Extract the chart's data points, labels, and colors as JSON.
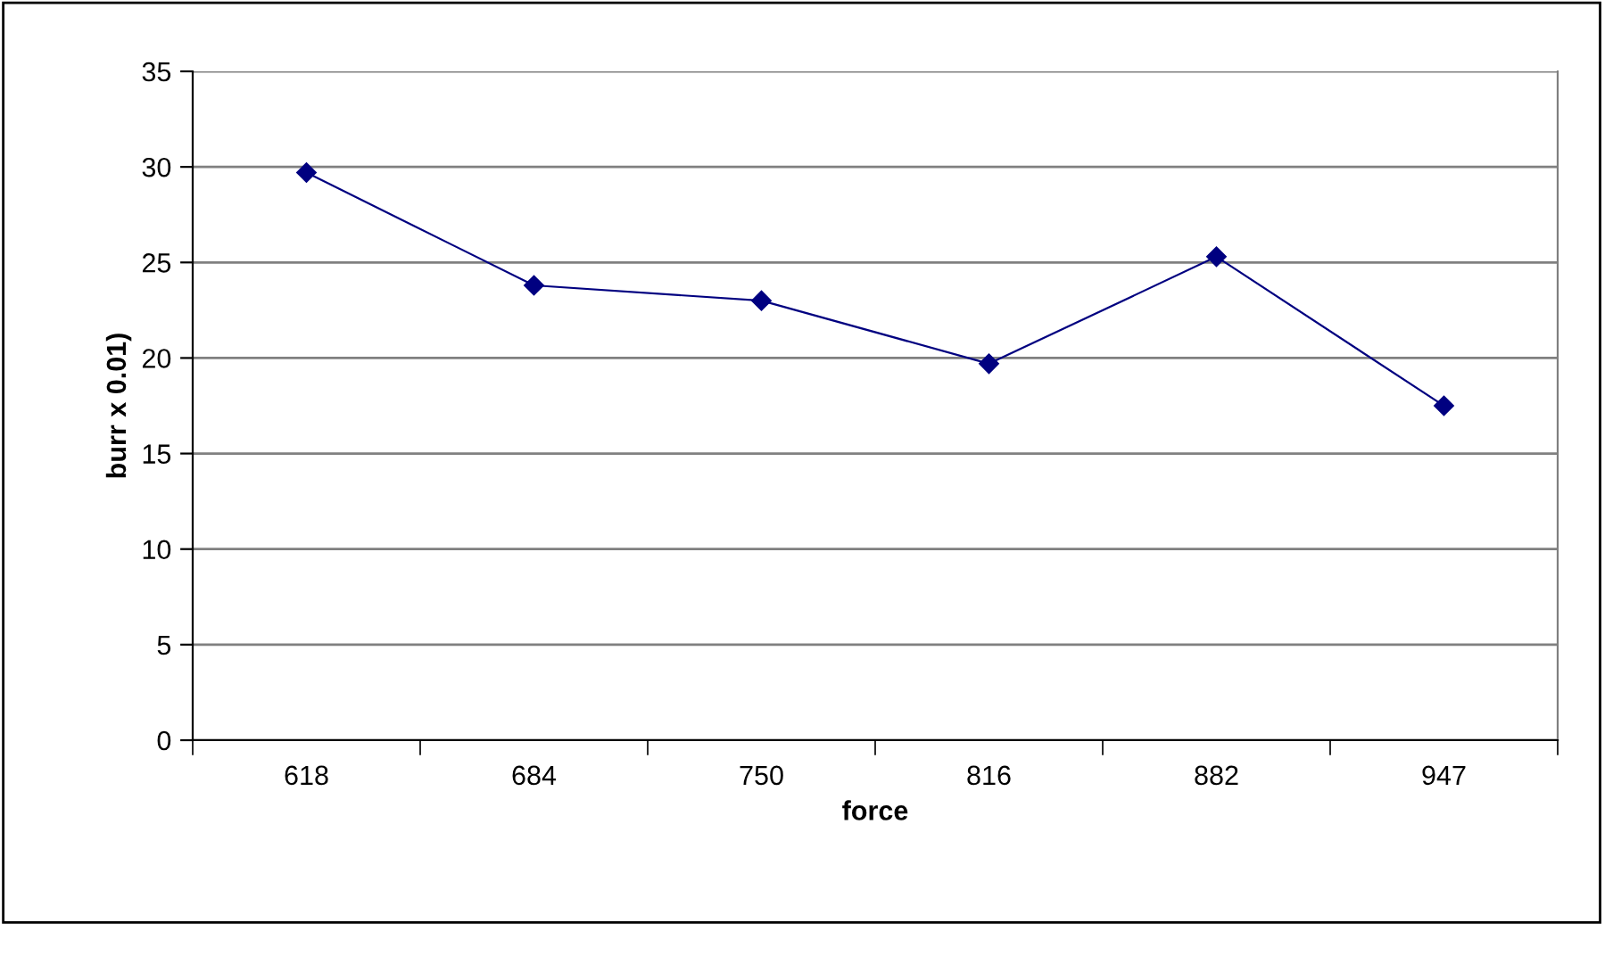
{
  "chart_data": {
    "type": "line",
    "xlabel": "force",
    "ylabel": "burr x 0.01)",
    "categories": [
      "618",
      "684",
      "750",
      "816",
      "882",
      "947"
    ],
    "series": [
      {
        "color": "#000080",
        "values": [
          29.7,
          23.8,
          23.0,
          19.7,
          25.3,
          17.5
        ]
      }
    ],
    "ylim": [
      0,
      35
    ],
    "yticks": [
      0,
      5,
      10,
      15,
      20,
      25,
      30,
      35
    ],
    "grid": "y",
    "marker": "diamond",
    "line_style": "solid"
  }
}
